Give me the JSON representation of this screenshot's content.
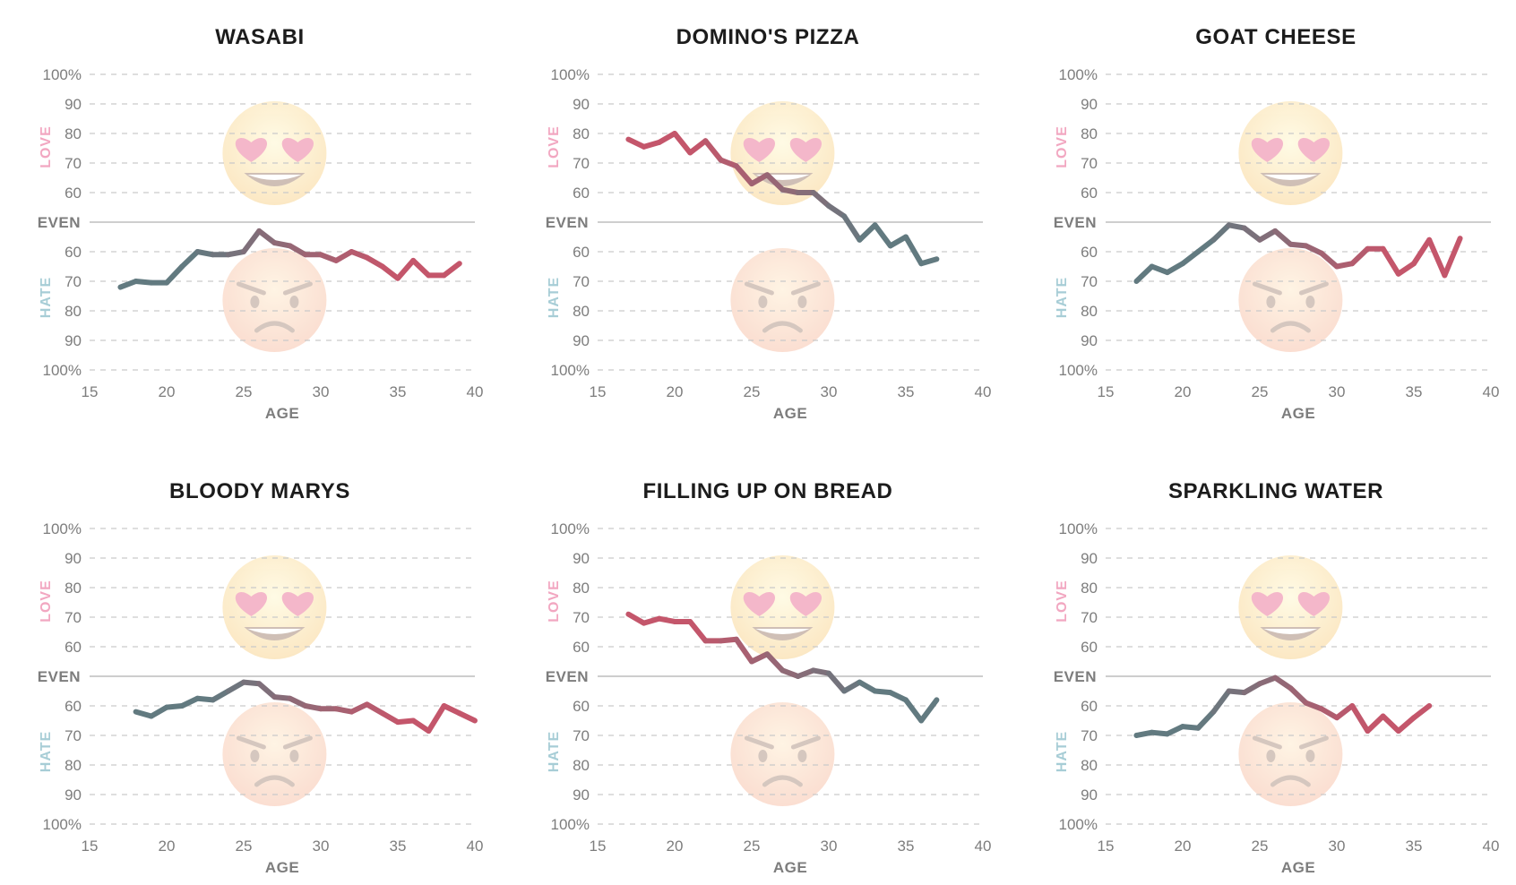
{
  "colors": {
    "love": "#c4566b",
    "hate": "#627a80",
    "grid": "#c9c9c9",
    "text": "#7d7d7d",
    "love_label": "#f2a7c1",
    "hate_label": "#a7cdd6"
  },
  "icons": {
    "love": "heart-eyes-emoji-icon",
    "hate": "angry-face-emoji-icon"
  },
  "y_axis": {
    "love_label": "LOVE",
    "hate_label": "HATE",
    "even_label": "EVEN",
    "love_ticks": [
      "100%",
      "90",
      "80",
      "70",
      "60"
    ],
    "hate_ticks": [
      "60",
      "70",
      "80",
      "90",
      "100%"
    ]
  },
  "chart_data": [
    {
      "type": "line",
      "title": "WASABI",
      "xlabel": "AGE",
      "xlim": [
        15,
        40
      ],
      "x_ticks": [
        "15",
        "20",
        "25",
        "30",
        "35",
        "40"
      ],
      "ylim": [
        -100,
        100
      ],
      "y_note": "positive = % love, negative = % hate",
      "x": [
        17,
        18,
        19,
        20,
        21,
        22,
        23,
        24,
        25,
        26,
        27,
        28,
        29,
        30,
        31,
        32,
        33,
        34,
        35,
        36,
        37,
        38,
        39
      ],
      "y": [
        -72,
        -70,
        -70.5,
        -70.5,
        -65,
        -60,
        -61,
        -61,
        -60,
        -53,
        -57,
        -58,
        -61,
        -61,
        -63,
        -60,
        -62,
        -65,
        -69,
        -63,
        -68,
        -68,
        -64
      ]
    },
    {
      "type": "line",
      "title": "DOMINO'S PIZZA",
      "xlabel": "AGE",
      "xlim": [
        15,
        40
      ],
      "x_ticks": [
        "15",
        "20",
        "25",
        "30",
        "35",
        "40"
      ],
      "ylim": [
        -100,
        100
      ],
      "x": [
        17,
        18,
        19,
        20,
        21,
        22,
        23,
        24,
        25,
        26,
        27,
        28,
        29,
        30,
        31,
        32,
        33,
        34,
        35,
        36,
        37
      ],
      "y": [
        78,
        75.5,
        77,
        80,
        73.5,
        77.5,
        71,
        69,
        63,
        66,
        61,
        60,
        60,
        55.5,
        52,
        -56,
        -51,
        -58,
        -55,
        -64,
        -62.5
      ]
    },
    {
      "type": "line",
      "title": "GOAT CHEESE",
      "xlabel": "AGE",
      "xlim": [
        15,
        40
      ],
      "x_ticks": [
        "15",
        "20",
        "25",
        "30",
        "35",
        "40"
      ],
      "ylim": [
        -100,
        100
      ],
      "x": [
        17,
        18,
        19,
        20,
        21,
        22,
        23,
        24,
        25,
        26,
        27,
        28,
        29,
        30,
        31,
        32,
        33,
        34,
        35,
        36,
        37,
        38
      ],
      "y": [
        -70,
        -65,
        -67,
        -64,
        -60,
        -56,
        -51,
        -52,
        -56,
        -53,
        -57.5,
        -58,
        -60.5,
        -65,
        -64,
        -59,
        -59,
        -67.5,
        -64,
        -56,
        -68,
        -55.5
      ]
    },
    {
      "type": "line",
      "title": "BLOODY MARYS",
      "xlabel": "AGE",
      "xlim": [
        15,
        40
      ],
      "x_ticks": [
        "15",
        "20",
        "25",
        "30",
        "35",
        "40"
      ],
      "ylim": [
        -100,
        100
      ],
      "x": [
        18,
        19,
        20,
        21,
        22,
        23,
        24,
        25,
        26,
        27,
        28,
        29,
        30,
        31,
        32,
        33,
        34,
        35,
        36,
        37,
        38,
        39,
        40
      ],
      "y": [
        -62,
        -63.5,
        -60.5,
        -60,
        -57.5,
        -58,
        -55,
        -52,
        -52.5,
        -57,
        -57.5,
        -60,
        -61,
        -61,
        -62,
        -59.5,
        -62.5,
        -65.5,
        -65,
        -68.5,
        -60,
        -62.5,
        -65
      ]
    },
    {
      "type": "line",
      "title": "FILLING UP ON BREAD",
      "xlabel": "AGE",
      "xlim": [
        15,
        40
      ],
      "x_ticks": [
        "15",
        "20",
        "25",
        "30",
        "35",
        "40"
      ],
      "ylim": [
        -100,
        100
      ],
      "x": [
        17,
        18,
        19,
        20,
        21,
        22,
        23,
        24,
        25,
        26,
        27,
        28,
        29,
        30,
        31,
        32,
        33,
        34,
        35,
        36,
        37
      ],
      "y": [
        71,
        68,
        69.5,
        68.5,
        68.5,
        62,
        62,
        62.5,
        55,
        57.5,
        52,
        50,
        52,
        51,
        -55,
        -52,
        -55,
        -55.5,
        -58,
        -65,
        -58
      ]
    },
    {
      "type": "line",
      "title": "SPARKLING WATER",
      "xlabel": "AGE",
      "xlim": [
        15,
        40
      ],
      "x_ticks": [
        "15",
        "20",
        "25",
        "30",
        "35",
        "40"
      ],
      "ylim": [
        -100,
        100
      ],
      "x": [
        17,
        18,
        19,
        20,
        21,
        22,
        23,
        24,
        25,
        26,
        27,
        28,
        29,
        30,
        31,
        32,
        33,
        34,
        35,
        36
      ],
      "y": [
        -70,
        -69,
        -69.5,
        -67,
        -67.5,
        -62,
        -55,
        -55.5,
        -52.5,
        -50.5,
        -54,
        -59,
        -61,
        -64,
        -60,
        -68.5,
        -63.5,
        -68.5,
        -64,
        -60
      ]
    }
  ]
}
